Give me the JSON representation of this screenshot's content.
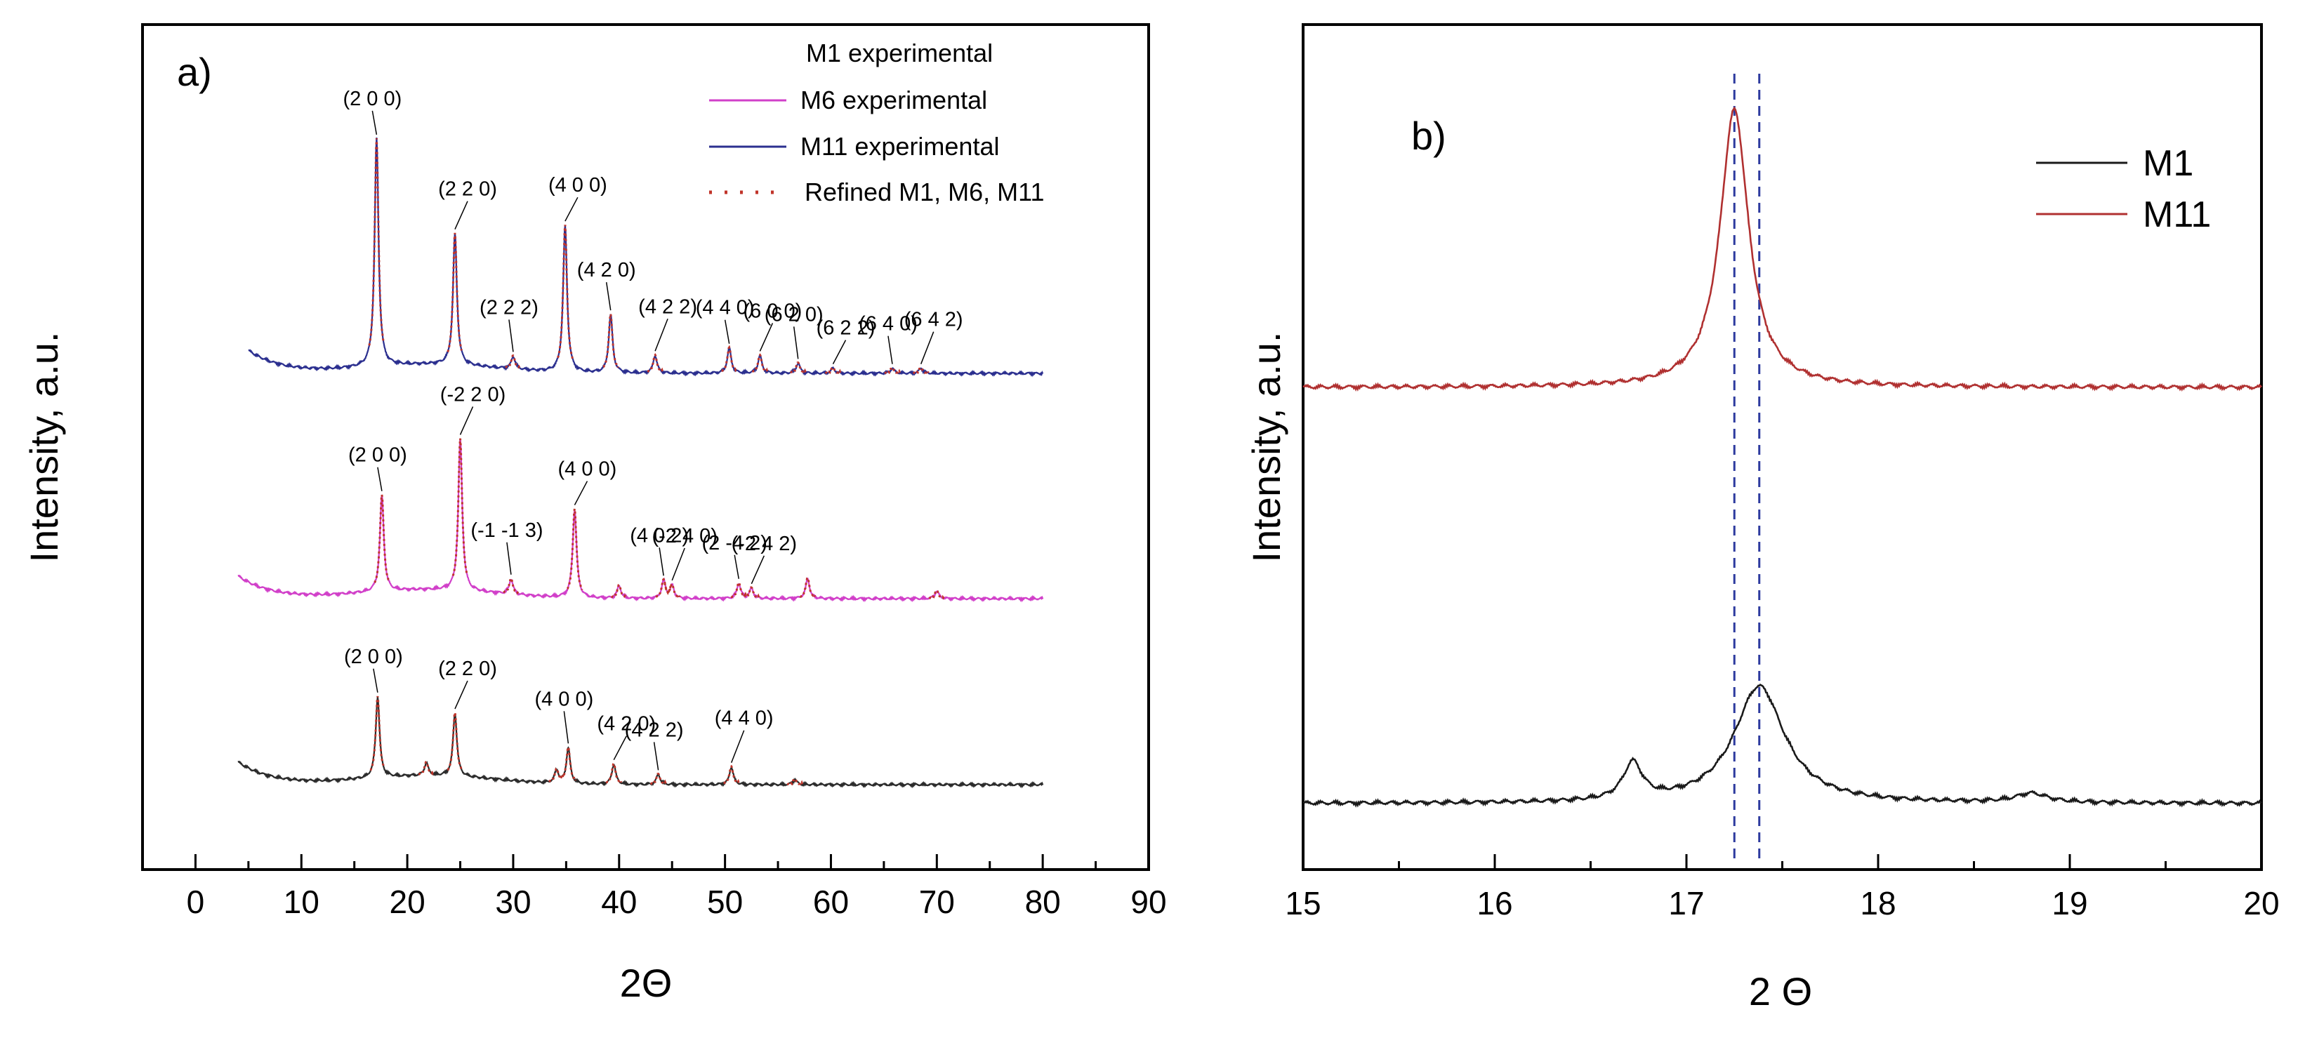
{
  "chart_data": [
    {
      "type": "line",
      "panel_label": "a)",
      "xlabel": "2Θ",
      "ylabel": "Intensity, a.u.",
      "xlim": [
        -5,
        90
      ],
      "xticks": [
        "0",
        "10",
        "20",
        "30",
        "40",
        "50",
        "60",
        "70",
        "80",
        "90"
      ],
      "yticks_shown": false,
      "legend_position": "top-right",
      "legend": [
        "M1 experimental",
        "M6 experimental",
        "M11 experimental",
        "Refined M1, M6, M11"
      ],
      "colors": {
        "M1": "#2b2b2b",
        "M6": "#d13fc9",
        "M11": "#2b2f8f",
        "refined": "#c0342a"
      },
      "series": [
        {
          "name": "M11",
          "relative_offset": 2,
          "x_range": [
            5,
            80
          ],
          "peaks": [
            {
              "x": 17.1,
              "h": 0.9
            },
            {
              "x": 24.5,
              "h": 0.52
            },
            {
              "x": 30.0,
              "h": 0.05
            },
            {
              "x": 34.9,
              "h": 0.58
            },
            {
              "x": 39.2,
              "h": 0.23
            },
            {
              "x": 43.4,
              "h": 0.07
            },
            {
              "x": 50.4,
              "h": 0.1
            },
            {
              "x": 53.3,
              "h": 0.07
            },
            {
              "x": 56.9,
              "h": 0.04
            },
            {
              "x": 60.2,
              "h": 0.02
            },
            {
              "x": 65.8,
              "h": 0.02
            },
            {
              "x": 68.5,
              "h": 0.02
            }
          ],
          "labels": [
            {
              "text": "(2 0 0)",
              "x": 17.1
            },
            {
              "text": "(2 2 0)",
              "x": 24.5
            },
            {
              "text": "(2 2 2)",
              "x": 30.0
            },
            {
              "text": "(4 0 0)",
              "x": 34.9
            },
            {
              "text": "(4 2 0)",
              "x": 39.2
            },
            {
              "text": "(4 2 2)",
              "x": 43.4
            },
            {
              "text": "(4 4 0)",
              "x": 50.4
            },
            {
              "text": "(6 0 0)",
              "x": 53.3
            },
            {
              "text": "(6 2 0)",
              "x": 56.9
            },
            {
              "text": "(6 2 2)",
              "x": 60.2
            },
            {
              "text": "(6 4 0)",
              "x": 65.8
            },
            {
              "text": "(6 4 2)",
              "x": 68.5
            }
          ]
        },
        {
          "name": "M6",
          "relative_offset": 1,
          "x_range": [
            4,
            80
          ],
          "peaks": [
            {
              "x": 17.6,
              "h": 0.38
            },
            {
              "x": 25.0,
              "h": 0.6
            },
            {
              "x": 29.8,
              "h": 0.06
            },
            {
              "x": 35.8,
              "h": 0.35
            },
            {
              "x": 40.0,
              "h": 0.05
            },
            {
              "x": 44.2,
              "h": 0.07
            },
            {
              "x": 45.0,
              "h": 0.05
            },
            {
              "x": 51.3,
              "h": 0.06
            },
            {
              "x": 52.5,
              "h": 0.04
            },
            {
              "x": 57.8,
              "h": 0.08
            },
            {
              "x": 70.0,
              "h": 0.03
            }
          ],
          "labels": [
            {
              "text": "(2 0 0)",
              "x": 17.6
            },
            {
              "text": "(-2 2 0)",
              "x": 25.0
            },
            {
              "text": "(-1 -1 3)",
              "x": 29.8
            },
            {
              "text": "(4 0 0)",
              "x": 35.8
            },
            {
              "text": "(4 0 2)",
              "x": 44.2
            },
            {
              "text": "(-2 4 0)",
              "x": 45.0
            },
            {
              "text": "(2 -4 2)",
              "x": 51.3
            },
            {
              "text": "(-2 4 2)",
              "x": 52.5
            }
          ]
        },
        {
          "name": "M1",
          "relative_offset": 0,
          "x_range": [
            4,
            80
          ],
          "peaks": [
            {
              "x": 17.2,
              "h": 0.32
            },
            {
              "x": 21.8,
              "h": 0.05
            },
            {
              "x": 24.5,
              "h": 0.25
            },
            {
              "x": 34.1,
              "h": 0.05
            },
            {
              "x": 35.2,
              "h": 0.14
            },
            {
              "x": 39.5,
              "h": 0.08
            },
            {
              "x": 43.7,
              "h": 0.04
            },
            {
              "x": 50.6,
              "h": 0.07
            },
            {
              "x": 56.6,
              "h": 0.02
            }
          ],
          "labels": [
            {
              "text": "(2 0 0)",
              "x": 17.2
            },
            {
              "text": "(2 2 0)",
              "x": 24.5
            },
            {
              "text": "(4 0 0)",
              "x": 35.2
            },
            {
              "text": "(4 2 0)",
              "x": 39.5
            },
            {
              "text": "(4 2 2)",
              "x": 43.7
            },
            {
              "text": "(4 4 0)",
              "x": 50.6
            }
          ]
        }
      ]
    },
    {
      "type": "line",
      "panel_label": "b)",
      "xlabel": "2 Θ",
      "ylabel": "Intensity, a.u.",
      "xlim": [
        15,
        20
      ],
      "xticks": [
        "15",
        "16",
        "17",
        "18",
        "19",
        "20"
      ],
      "yticks_shown": false,
      "legend_position": "top-right",
      "legend": [
        "M1",
        "M11"
      ],
      "colors": {
        "M1": "#1a1a1a",
        "M11": "#b03030",
        "reference_lines": "#2d3a9e"
      },
      "reference_lines_x": [
        17.25,
        17.38
      ],
      "series": [
        {
          "name": "M11",
          "relative_offset": 1,
          "peaks": [
            {
              "x": 17.25,
              "h": 0.9,
              "w": 0.09
            }
          ]
        },
        {
          "name": "M1",
          "relative_offset": 0,
          "peaks": [
            {
              "x": 16.72,
              "h": 0.12,
              "w": 0.06
            },
            {
              "x": 17.38,
              "h": 0.38,
              "w": 0.16
            },
            {
              "x": 18.8,
              "h": 0.03,
              "w": 0.1
            }
          ]
        }
      ]
    }
  ]
}
